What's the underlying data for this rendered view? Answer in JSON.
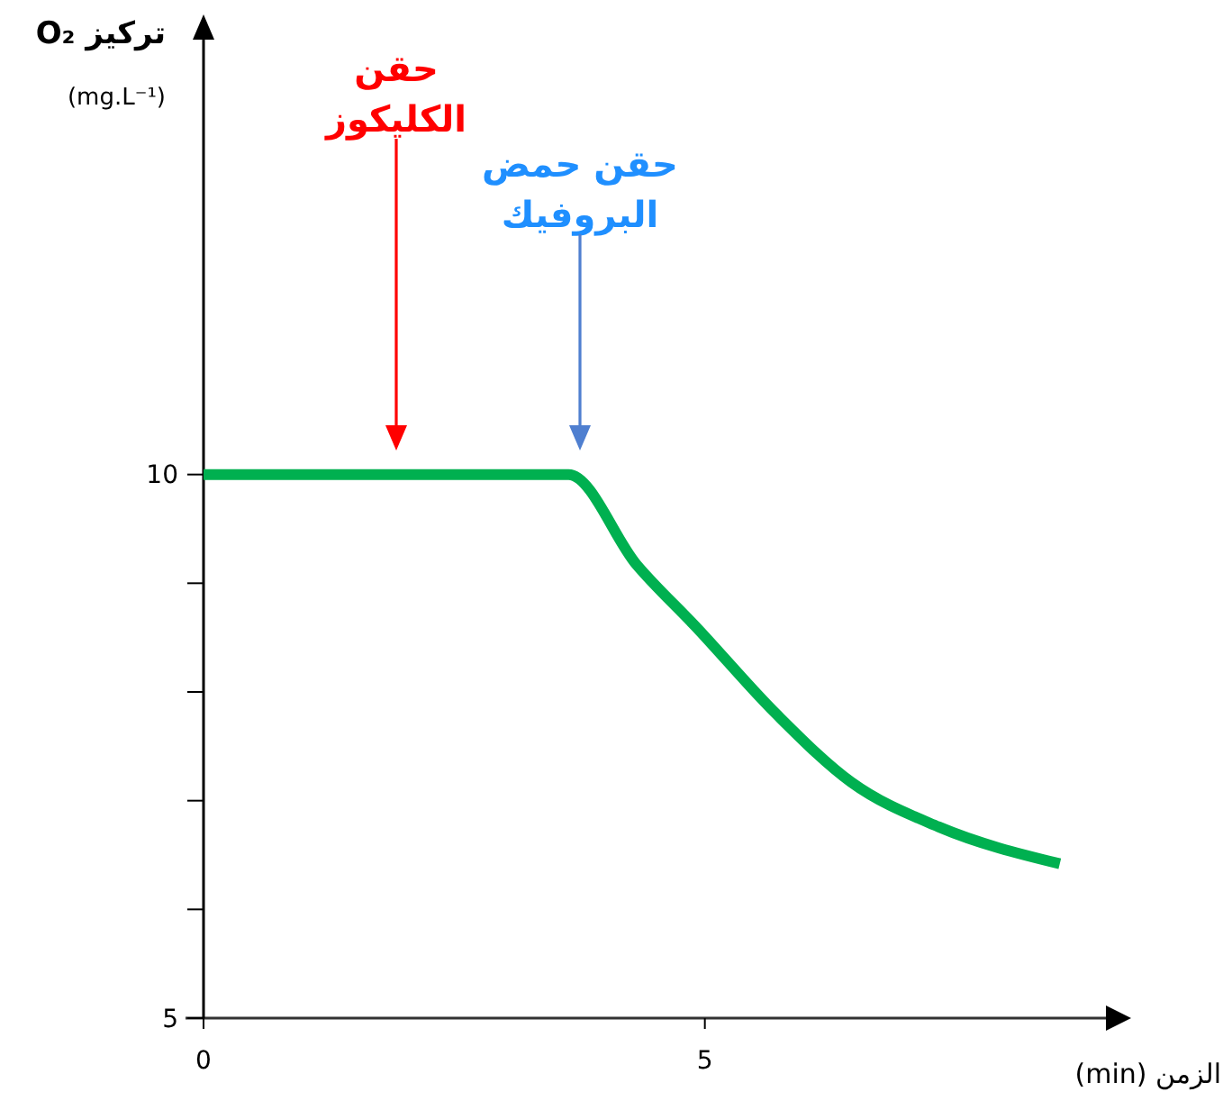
{
  "chart_data": {
    "type": "line",
    "xlabel": "الزمن (min)",
    "ylabel": "تركيز O₂\n(mg.L⁻¹)",
    "xlim": [
      0,
      9
    ],
    "ylim": [
      5,
      14
    ],
    "xticks": [
      0,
      5
    ],
    "yticks": [
      5,
      {
        "value": 6,
        "label": null
      },
      {
        "value": 7,
        "label": null
      },
      {
        "value": 8,
        "label": null
      },
      {
        "value": 9,
        "label": null
      },
      10
    ],
    "grid": false,
    "marker": "none",
    "line_style": "solid",
    "series": [
      {
        "color": "#00b050",
        "x": [
          0,
          3.64,
          4.32,
          4.91,
          5.72,
          6.46,
          7.33,
          8.54
        ],
        "values": [
          10,
          10,
          9.17,
          8.6,
          7.79,
          7.17,
          6.76,
          6.42
        ]
      }
    ],
    "annotations": [
      "حقن\nالكليكوز",
      "حقن حمض\nالبروفيك"
    ]
  }
}
